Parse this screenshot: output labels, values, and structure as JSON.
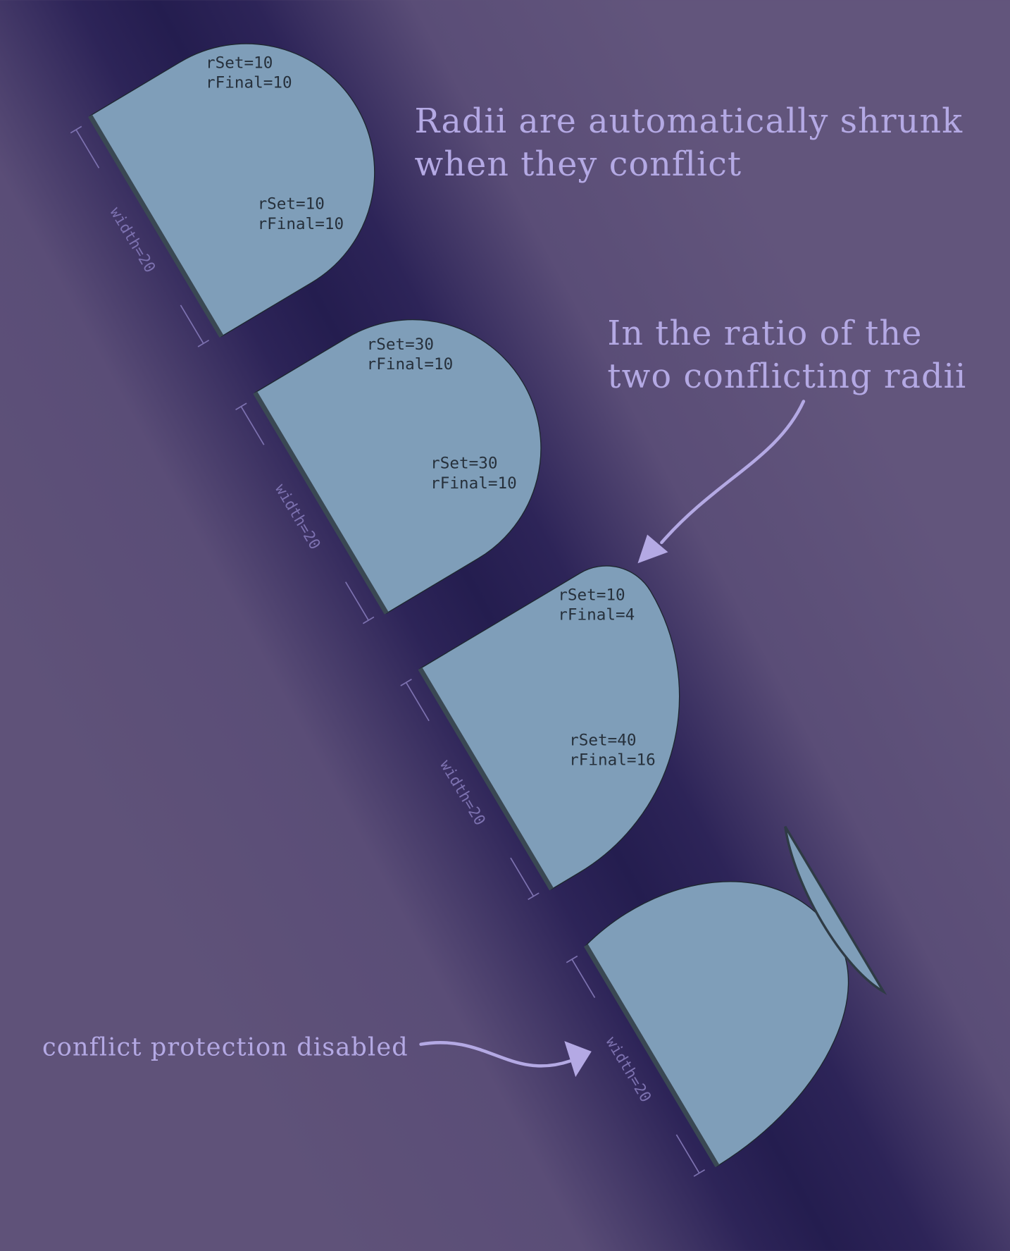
{
  "headline": {
    "line1": "Radii are automatically shrunk",
    "line2": "when they conflict"
  },
  "ratio_note": {
    "line1": "In the ratio of the",
    "line2": "two conflicting radii"
  },
  "disabled_note": "conflict protection disabled",
  "colors": {
    "background": "#5f5279",
    "band": "#241d4f",
    "shape": "#7f9eb9",
    "text": "#b4a9e4"
  },
  "shapes": [
    {
      "width_label": "width=20",
      "corner_top": {
        "set": "rSet=10",
        "final": "rFinal=10"
      },
      "corner_bottom": {
        "set": "rSet=10",
        "final": "rFinal=10"
      }
    },
    {
      "width_label": "width=20",
      "corner_top": {
        "set": "rSet=30",
        "final": "rFinal=10"
      },
      "corner_bottom": {
        "set": "rSet=30",
        "final": "rFinal=10"
      }
    },
    {
      "width_label": "width=20",
      "corner_top": {
        "set": "rSet=10",
        "final": "rFinal=4"
      },
      "corner_bottom": {
        "set": "rSet=40",
        "final": "rFinal=16"
      }
    },
    {
      "width_label": "width=20"
    }
  ]
}
